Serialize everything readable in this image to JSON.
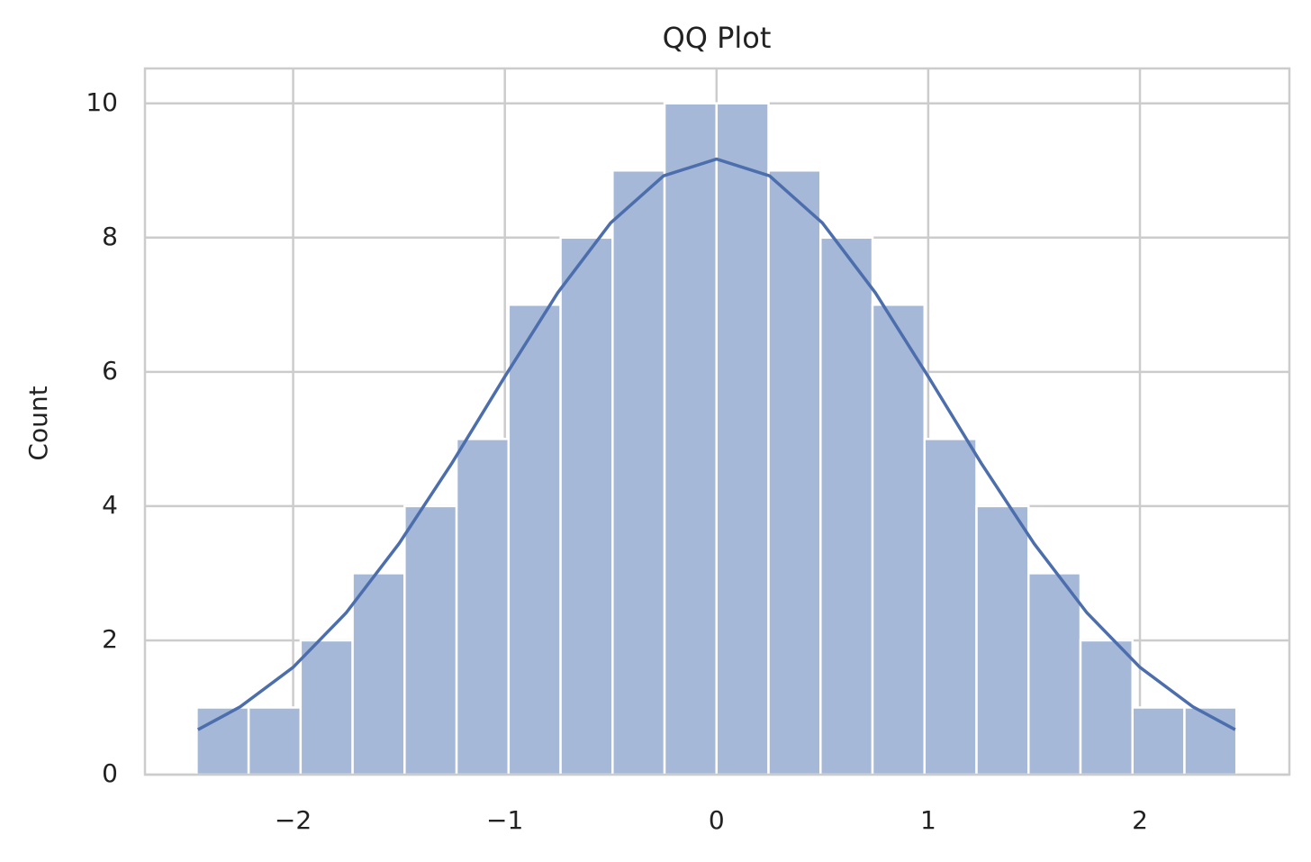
{
  "chart_data": {
    "type": "histogram",
    "title": "QQ Plot",
    "ylabel": "Count",
    "bins": [
      -2.456,
      -2.2104,
      -1.9648,
      -1.7192,
      -1.4736,
      -1.228,
      -0.9824,
      -0.7368,
      -0.4912,
      -0.2456,
      0,
      0.2456,
      0.4912,
      0.7368,
      0.9824,
      1.228,
      1.4736,
      1.7192,
      1.9648,
      2.2104,
      2.456
    ],
    "values": [
      1,
      1,
      2,
      3,
      4,
      5,
      7,
      8,
      9,
      10,
      10,
      9,
      8,
      7,
      5,
      4,
      3,
      2,
      1,
      1
    ],
    "color": "#a5b8d7",
    "kde": {
      "color": "#4c6ead",
      "x": [
        -2.45,
        -2.25,
        -2,
        -1.75,
        -1.5,
        -1.25,
        -1,
        -0.75,
        -0.5,
        -0.25,
        0,
        0.25,
        0.5,
        0.75,
        1,
        1.25,
        1.5,
        1.75,
        2,
        2.25,
        2.45
      ],
      "values": [
        0.67,
        1.01,
        1.6,
        2.41,
        3.44,
        4.64,
        5.93,
        7.18,
        8.22,
        8.92,
        9.17,
        8.92,
        8.22,
        7.18,
        5.93,
        4.64,
        3.44,
        2.41,
        1.6,
        1.01,
        0.67
      ]
    },
    "xlim": [
      -2.7,
      2.706
    ],
    "ylim": [
      0,
      10.52
    ],
    "xticks": [
      {
        "value": -2,
        "label": "−2"
      },
      {
        "value": -1,
        "label": "−1"
      },
      0,
      1,
      2
    ],
    "yticks": [
      0,
      2,
      4,
      6,
      8,
      10
    ],
    "grid": true
  }
}
